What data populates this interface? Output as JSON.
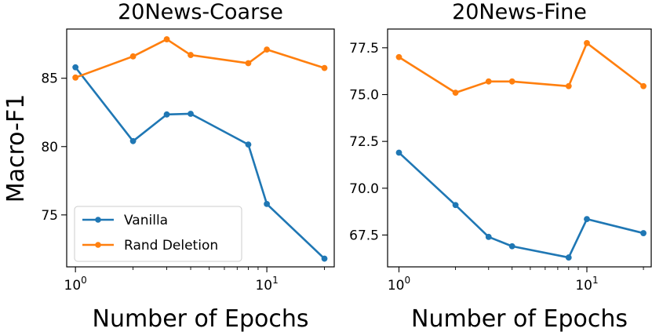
{
  "figure": {
    "ylabel": "Macro-F1",
    "xlabel": "Number of Epochs"
  },
  "legend": {
    "entries": [
      "Vanilla",
      "Rand Deletion"
    ]
  },
  "colors": {
    "vanilla": "#1f77b4",
    "rand_deletion": "#ff7f0e"
  },
  "chart_data": [
    {
      "type": "line",
      "title": "20News-Coarse",
      "xlabel": "Number of Epochs",
      "ylabel": "Macro-F1",
      "xscale": "log",
      "x": [
        1,
        2,
        3,
        4,
        8,
        10,
        20
      ],
      "xticks": [
        1,
        10
      ],
      "xtick_labels": [
        [
          "10",
          "0"
        ],
        [
          "10",
          "1"
        ]
      ],
      "ylim": [
        71.2,
        88.6
      ],
      "yticks": [
        75,
        80,
        85
      ],
      "ytick_labels": [
        "75",
        "80",
        "85"
      ],
      "legend_position": "lower-left",
      "series": [
        {
          "name": "Vanilla",
          "color": "#1f77b4",
          "values": [
            85.8,
            80.4,
            82.35,
            82.4,
            80.15,
            75.8,
            71.8
          ]
        },
        {
          "name": "Rand Deletion",
          "color": "#ff7f0e",
          "values": [
            85.05,
            86.6,
            87.85,
            86.7,
            86.1,
            87.1,
            85.75
          ]
        }
      ]
    },
    {
      "type": "line",
      "title": "20News-Fine",
      "xlabel": "Number of Epochs",
      "ylabel": "",
      "xscale": "log",
      "x": [
        1,
        2,
        3,
        4,
        8,
        10,
        20
      ],
      "xticks": [
        1,
        10
      ],
      "xtick_labels": [
        [
          "10",
          "0"
        ],
        [
          "10",
          "1"
        ]
      ],
      "ylim": [
        65.8,
        78.5
      ],
      "yticks": [
        67.5,
        70.0,
        72.5,
        75.0,
        77.5
      ],
      "ytick_labels": [
        "67.5",
        "70.0",
        "72.5",
        "75.0",
        "77.5"
      ],
      "series": [
        {
          "name": "Vanilla",
          "color": "#1f77b4",
          "values": [
            71.9,
            69.1,
            67.4,
            66.9,
            66.3,
            68.35,
            67.6
          ]
        },
        {
          "name": "Rand Deletion",
          "color": "#ff7f0e",
          "values": [
            77.0,
            75.1,
            75.7,
            75.7,
            75.45,
            77.75,
            75.45
          ]
        }
      ]
    }
  ]
}
